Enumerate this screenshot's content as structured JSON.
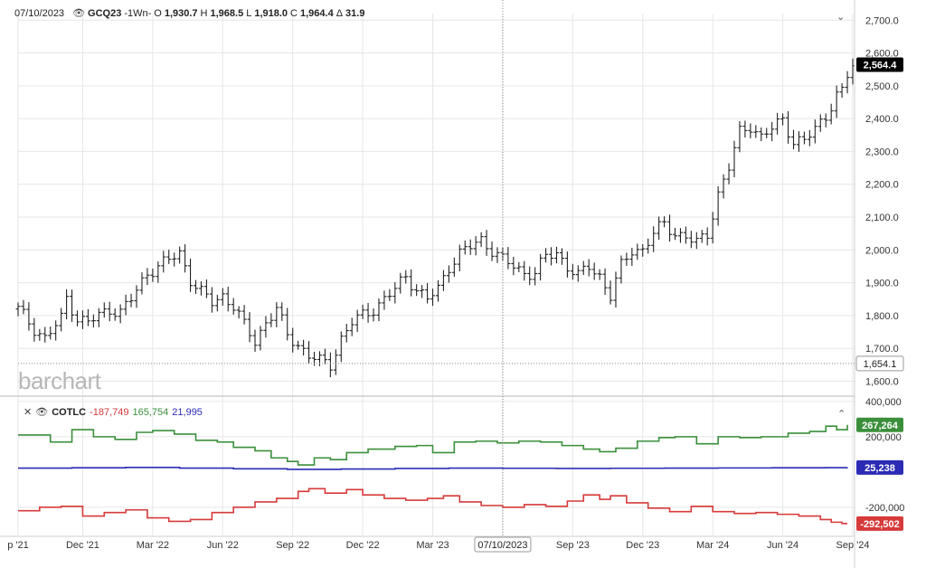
{
  "header": {
    "date": "07/10/2023",
    "symbol": "GCQ23",
    "interval": "-1Wn-",
    "o_label": "O",
    "o": "1,930.7",
    "h_label": "H",
    "h": "1,968.5",
    "l_label": "L",
    "l": "1,918.0",
    "c_label": "C",
    "c": "1,964.4",
    "delta_label": "Δ",
    "delta": "31.9"
  },
  "cot_header": {
    "name": "COTLC",
    "v1": "-187,749",
    "v2": "165,754",
    "v3": "21,995"
  },
  "watermark": "barchart",
  "crosshair_date": "07/10/2023",
  "colors": {
    "price": "#222222",
    "green": "#3b8f3b",
    "blue": "#2b2bb5",
    "red": "#d63a3a",
    "last_bg": "#000000"
  },
  "chart_data": [
    {
      "type": "ohlc",
      "interval": "weekly",
      "ylim": [
        1560,
        2720
      ],
      "yticks": [
        "2,700.0",
        "2,600.0",
        "2,500.0",
        "2,400.0",
        "2,300.0",
        "2,200.0",
        "2,100.0",
        "2,000.0",
        "1,900.0",
        "1,800.0",
        "1,700.0",
        "1,600.0"
      ],
      "ytick_values": [
        2700,
        2600,
        2500,
        2400,
        2300,
        2200,
        2100,
        2000,
        1900,
        1800,
        1700,
        1600
      ],
      "last_price": 2564.4,
      "last_label": "2,564.4",
      "crosshair_price": 1654.1,
      "crosshair_label": "1,654.1",
      "xticks": [
        "p '21",
        "Dec '21",
        "Mar '22",
        "Jun '22",
        "Sep '22",
        "Dec '22",
        "Mar '23",
        "Jun '23",
        "Sep '23",
        "Dec '23",
        "Mar '24",
        "Jun '24",
        "Sep '24"
      ],
      "xtick_weeks": [
        0,
        12,
        25,
        38,
        51,
        64,
        77,
        90,
        103,
        116,
        129,
        142,
        155
      ],
      "anchors": [
        [
          0,
          1820
        ],
        [
          3,
          1760
        ],
        [
          5,
          1730
        ],
        [
          8,
          1790
        ],
        [
          9,
          1855
        ],
        [
          11,
          1790
        ],
        [
          13,
          1780
        ],
        [
          15,
          1800
        ],
        [
          17,
          1820
        ],
        [
          19,
          1810
        ],
        [
          21,
          1850
        ],
        [
          24,
          1930
        ],
        [
          26,
          1950
        ],
        [
          28,
          1970
        ],
        [
          30,
          1990
        ],
        [
          32,
          1910
        ],
        [
          34,
          1870
        ],
        [
          36,
          1840
        ],
        [
          38,
          1860
        ],
        [
          40,
          1830
        ],
        [
          42,
          1770
        ],
        [
          44,
          1720
        ],
        [
          46,
          1780
        ],
        [
          48,
          1820
        ],
        [
          50,
          1740
        ],
        [
          52,
          1710
        ],
        [
          54,
          1680
        ],
        [
          56,
          1660
        ],
        [
          58,
          1650
        ],
        [
          60,
          1730
        ],
        [
          62,
          1780
        ],
        [
          64,
          1800
        ],
        [
          66,
          1820
        ],
        [
          68,
          1850
        ],
        [
          70,
          1880
        ],
        [
          72,
          1920
        ],
        [
          74,
          1880
        ],
        [
          76,
          1850
        ],
        [
          78,
          1880
        ],
        [
          80,
          1950
        ],
        [
          82,
          1990
        ],
        [
          84,
          2010
        ],
        [
          86,
          2030
        ],
        [
          88,
          2000
        ],
        [
          90,
          1970
        ],
        [
          92,
          1950
        ],
        [
          94,
          1930
        ],
        [
          96,
          1930
        ],
        [
          98,
          1980
        ],
        [
          100,
          1990
        ],
        [
          102,
          1950
        ],
        [
          104,
          1920
        ],
        [
          106,
          1950
        ],
        [
          108,
          1920
        ],
        [
          110,
          1860
        ],
        [
          112,
          1950
        ],
        [
          114,
          2000
        ],
        [
          116,
          2000
        ],
        [
          118,
          2050
        ],
        [
          120,
          2080
        ],
        [
          122,
          2050
        ],
        [
          124,
          2040
        ],
        [
          126,
          2020
        ],
        [
          128,
          2050
        ],
        [
          130,
          2170
        ],
        [
          132,
          2250
        ],
        [
          134,
          2360
        ],
        [
          136,
          2380
        ],
        [
          138,
          2340
        ],
        [
          140,
          2370
        ],
        [
          142,
          2400
        ],
        [
          144,
          2330
        ],
        [
          146,
          2330
        ],
        [
          148,
          2370
        ],
        [
          150,
          2410
        ],
        [
          152,
          2470
        ],
        [
          153,
          2480
        ],
        [
          154,
          2530
        ],
        [
          155,
          2564
        ]
      ]
    },
    {
      "type": "line",
      "name": "COTLC",
      "ylim": [
        -360000,
        420000
      ],
      "yticks": [
        "400,000",
        "200,000",
        "-200,000"
      ],
      "ytick_values": [
        400000,
        200000,
        -200000
      ],
      "xlim": [
        0,
        155
      ],
      "series": [
        {
          "name": "165,754",
          "color": "#3b8f3b",
          "last_label": "267,264",
          "points": [
            [
              0,
              210000
            ],
            [
              6,
              170000
            ],
            [
              10,
              240000
            ],
            [
              14,
              200000
            ],
            [
              18,
              185000
            ],
            [
              22,
              225000
            ],
            [
              25,
              235000
            ],
            [
              29,
              215000
            ],
            [
              33,
              180000
            ],
            [
              37,
              170000
            ],
            [
              40,
              140000
            ],
            [
              44,
              120000
            ],
            [
              47,
              80000
            ],
            [
              50,
              60000
            ],
            [
              52,
              40000
            ],
            [
              55,
              80000
            ],
            [
              58,
              70000
            ],
            [
              61,
              110000
            ],
            [
              65,
              130000
            ],
            [
              70,
              145000
            ],
            [
              74,
              150000
            ],
            [
              77,
              110000
            ],
            [
              81,
              170000
            ],
            [
              85,
              175000
            ],
            [
              89,
              165000
            ],
            [
              93,
              175000
            ],
            [
              97,
              170000
            ],
            [
              101,
              150000
            ],
            [
              105,
              130000
            ],
            [
              108,
              115000
            ],
            [
              111,
              135000
            ],
            [
              115,
              175000
            ],
            [
              119,
              195000
            ],
            [
              122,
              200000
            ],
            [
              126,
              160000
            ],
            [
              130,
              200000
            ],
            [
              134,
              195000
            ],
            [
              138,
              200000
            ],
            [
              143,
              220000
            ],
            [
              147,
              230000
            ],
            [
              150,
              260000
            ],
            [
              152,
              240000
            ],
            [
              154,
              267264
            ]
          ]
        },
        {
          "name": "21,995",
          "color": "#2b2bb5",
          "last_label": "25,238",
          "points": [
            [
              0,
              21995
            ],
            [
              10,
              24000
            ],
            [
              20,
              26000
            ],
            [
              30,
              22000
            ],
            [
              40,
              18000
            ],
            [
              50,
              15000
            ],
            [
              60,
              17000
            ],
            [
              70,
              20000
            ],
            [
              80,
              22000
            ],
            [
              90,
              21000
            ],
            [
              100,
              20000
            ],
            [
              110,
              21000
            ],
            [
              120,
              22000
            ],
            [
              130,
              23000
            ],
            [
              140,
              24000
            ],
            [
              150,
              24500
            ],
            [
              154,
              25238
            ]
          ]
        },
        {
          "name": "-187,749",
          "color": "#d63a3a",
          "last_label": "-292,502",
          "points": [
            [
              0,
              -220000
            ],
            [
              4,
              -200000
            ],
            [
              8,
              -195000
            ],
            [
              12,
              -250000
            ],
            [
              16,
              -230000
            ],
            [
              20,
              -215000
            ],
            [
              24,
              -260000
            ],
            [
              28,
              -280000
            ],
            [
              32,
              -270000
            ],
            [
              36,
              -230000
            ],
            [
              40,
              -200000
            ],
            [
              44,
              -170000
            ],
            [
              48,
              -150000
            ],
            [
              52,
              -110000
            ],
            [
              54,
              -95000
            ],
            [
              57,
              -120000
            ],
            [
              61,
              -100000
            ],
            [
              64,
              -130000
            ],
            [
              68,
              -150000
            ],
            [
              72,
              -160000
            ],
            [
              76,
              -150000
            ],
            [
              79,
              -135000
            ],
            [
              82,
              -170000
            ],
            [
              86,
              -190000
            ],
            [
              90,
              -200000
            ],
            [
              94,
              -185000
            ],
            [
              98,
              -195000
            ],
            [
              102,
              -165000
            ],
            [
              105,
              -130000
            ],
            [
              108,
              -155000
            ],
            [
              110,
              -135000
            ],
            [
              113,
              -175000
            ],
            [
              117,
              -205000
            ],
            [
              121,
              -225000
            ],
            [
              125,
              -195000
            ],
            [
              129,
              -225000
            ],
            [
              133,
              -235000
            ],
            [
              137,
              -230000
            ],
            [
              141,
              -240000
            ],
            [
              145,
              -250000
            ],
            [
              149,
              -270000
            ],
            [
              151,
              -285000
            ],
            [
              153,
              -292502
            ],
            [
              154,
              -292502
            ]
          ]
        }
      ]
    }
  ]
}
